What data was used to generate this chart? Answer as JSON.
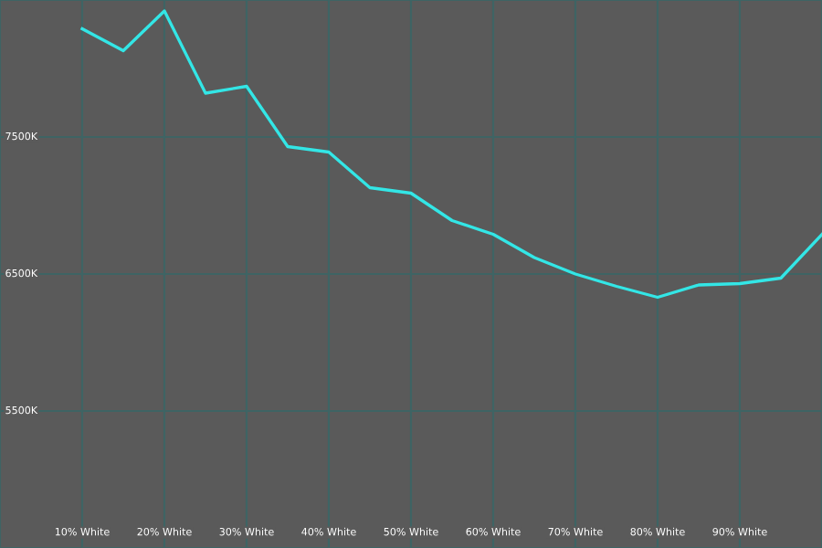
{
  "chart_data": {
    "type": "line",
    "x": [
      10,
      15,
      20,
      25,
      30,
      35,
      40,
      45,
      50,
      55,
      60,
      65,
      70,
      75,
      80,
      85,
      90,
      95,
      100
    ],
    "series": [
      {
        "color": "#33e6e6",
        "values": [
          8290,
          8130,
          8420,
          7820,
          7870,
          7430,
          7390,
          7130,
          7090,
          6890,
          6790,
          6620,
          6500,
          6410,
          6330,
          6420,
          6430,
          6470,
          6790
        ]
      }
    ],
    "xlim": [
      0,
      100
    ],
    "xticks": [
      {
        "value": 10,
        "label": "10% White"
      },
      {
        "value": 20,
        "label": "20% White"
      },
      {
        "value": 30,
        "label": "30% White"
      },
      {
        "value": 40,
        "label": "40% White"
      },
      {
        "value": 50,
        "label": "50% White"
      },
      {
        "value": 60,
        "label": "60% White"
      },
      {
        "value": 70,
        "label": "70% White"
      },
      {
        "value": 80,
        "label": "80% White"
      },
      {
        "value": 90,
        "label": "90% White"
      }
    ],
    "ylim": [
      4500,
      8500
    ],
    "yticks": [
      {
        "value": 5500,
        "label": "5500K"
      },
      {
        "value": 6500,
        "label": "6500K"
      },
      {
        "value": 7500,
        "label": "7500K"
      }
    ],
    "grid": true,
    "marker": "none",
    "line_style": "solid"
  }
}
